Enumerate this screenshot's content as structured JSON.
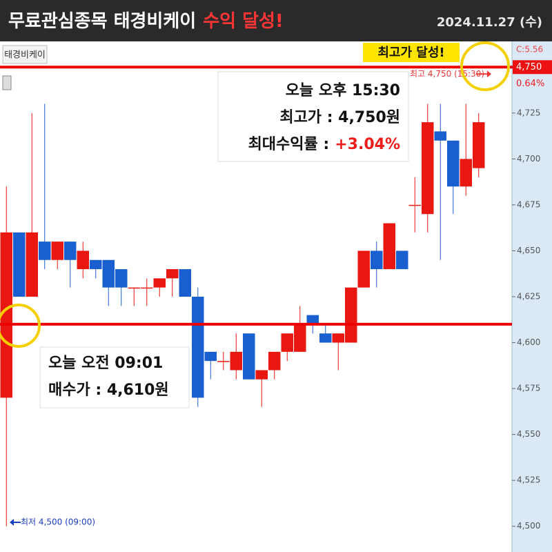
{
  "header": {
    "title": "무료관심종목 태경비케이",
    "title_highlight": "수익 달성!",
    "date": "2024.11.27 (수)"
  },
  "chart_data": {
    "type": "candlestick",
    "symbol_tag": "태경비케이",
    "up_color": "#e8170f",
    "down_color": "#1a5fcf",
    "open": [
      4570,
      4660,
      4625,
      4655,
      4645,
      4655,
      4640,
      4645,
      4645,
      4640,
      4630,
      4630,
      4630,
      4635,
      4640,
      4625,
      4595,
      4590,
      4585,
      4605,
      4580,
      4585,
      4595,
      4595,
      4615,
      4605,
      4600,
      4600,
      4630,
      4650,
      4640,
      4650,
      4675,
      4670,
      4715,
      4710,
      4685,
      4695
    ],
    "high": [
      4685,
      4660,
      4725,
      4730,
      4655,
      4655,
      4655,
      4645,
      4645,
      4640,
      4630,
      4635,
      4635,
      4640,
      4640,
      4630,
      4595,
      4595,
      4605,
      4605,
      4585,
      4595,
      4605,
      4620,
      4615,
      4610,
      4605,
      4630,
      4650,
      4655,
      4665,
      4650,
      4690,
      4730,
      4730,
      4710,
      4730,
      4725
    ],
    "low": [
      4500,
      4625,
      4625,
      4640,
      4640,
      4630,
      4635,
      4635,
      4620,
      4620,
      4620,
      4620,
      4625,
      4625,
      4625,
      4565,
      4580,
      4585,
      4580,
      4580,
      4565,
      4580,
      4590,
      4595,
      4605,
      4600,
      4585,
      4600,
      4630,
      4630,
      4640,
      4640,
      4660,
      4660,
      4645,
      4670,
      4680,
      4690
    ],
    "close": [
      4660,
      4625,
      4660,
      4645,
      4655,
      4645,
      4650,
      4640,
      4630,
      4630,
      4630,
      4630,
      4635,
      4640,
      4625,
      4570,
      4590,
      4590,
      4595,
      4580,
      4585,
      4595,
      4605,
      4610,
      4610,
      4600,
      4605,
      4630,
      4650,
      4640,
      4665,
      4640,
      4675,
      4720,
      4710,
      4685,
      4700,
      4720
    ],
    "ylim": [
      4486,
      4764
    ],
    "yticks": [
      {
        "value": 4500,
        "label": "4,500"
      },
      {
        "value": 4525,
        "label": "4,525"
      },
      {
        "value": 4550,
        "label": "4,550"
      },
      {
        "value": 4575,
        "label": "4,575"
      },
      {
        "value": 4600,
        "label": "4,600"
      },
      {
        "value": 4625,
        "label": "4,625"
      },
      {
        "value": 4650,
        "label": "4,650"
      },
      {
        "value": 4675,
        "label": "4,675"
      },
      {
        "value": 4700,
        "label": "4,700"
      },
      {
        "value": 4725,
        "label": "4,725"
      }
    ],
    "axis_top_label": "C:5.56",
    "change_label": "0.64%",
    "last_price": {
      "value": 4750,
      "label": "4,750"
    },
    "price_lines": [
      {
        "value": 4750,
        "color": "#ee0000"
      },
      {
        "value": 4610,
        "color": "#ee0000"
      }
    ],
    "high_note": "최고 4,750 (15:30)",
    "low_note": "최저 4,500 (09:00)",
    "badge": "최고가 달성!",
    "sell_box": {
      "lines": [
        "오늘 오후 15:30",
        "최고가 : 4,750원"
      ],
      "return_label": "최대수익률 :",
      "return_value": "+3.04%"
    },
    "buy_box": {
      "lines": [
        "오늘 오전 09:01",
        "매수가 : 4,610원"
      ]
    }
  }
}
